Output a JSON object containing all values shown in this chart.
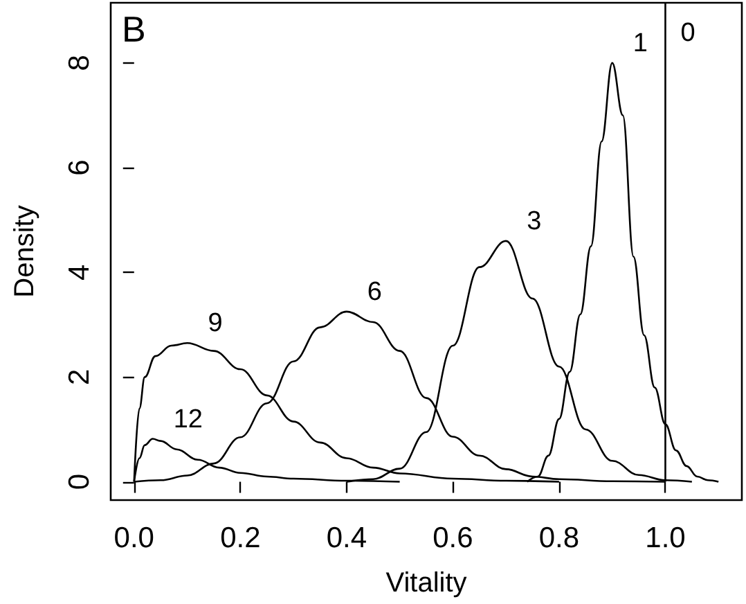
{
  "chart_data": {
    "type": "line",
    "xlabel": "Vitality",
    "ylabel": "Density",
    "annotations": [
      "B"
    ],
    "xlim": [
      -0.044,
      1.144
    ],
    "ylim": [
      -0.35,
      9.15
    ],
    "xticks": [
      {
        "value": 0,
        "label": "0.0"
      },
      0.2,
      0.4,
      0.6,
      0.8,
      {
        "value": 1,
        "label": "1.0"
      }
    ],
    "yticks": [
      0,
      2,
      4,
      6,
      8
    ],
    "grid": false,
    "legend": false,
    "marker": "none",
    "line_style": "solid",
    "series": [
      {
        "name": "0",
        "color": "#000000",
        "x": [
          1.0,
          1.0
        ],
        "values": [
          0,
          9.15
        ]
      },
      {
        "name": "1",
        "color": "#000000",
        "x": [
          0.74,
          0.76,
          0.78,
          0.8,
          0.82,
          0.84,
          0.86,
          0.88,
          0.9,
          0.92,
          0.94,
          0.96,
          0.98,
          1.0,
          1.02,
          1.04,
          1.06,
          1.08,
          1.1
        ],
        "values": [
          0,
          0.1,
          0.5,
          1.2,
          2.1,
          3.2,
          4.5,
          6.5,
          8.0,
          7.0,
          4.3,
          2.8,
          1.8,
          1.1,
          0.6,
          0.3,
          0.1,
          0.03,
          0
        ]
      },
      {
        "name": "3",
        "color": "#000000",
        "x": [
          0.4,
          0.45,
          0.5,
          0.55,
          0.6,
          0.65,
          0.7,
          0.75,
          0.8,
          0.85,
          0.9,
          0.95,
          1.0,
          1.05
        ],
        "values": [
          0,
          0.05,
          0.25,
          0.95,
          2.6,
          4.1,
          4.6,
          3.5,
          2.2,
          1.0,
          0.4,
          0.13,
          0.03,
          0
        ]
      },
      {
        "name": "6",
        "color": "#000000",
        "x": [
          0.0,
          0.05,
          0.1,
          0.15,
          0.2,
          0.25,
          0.3,
          0.35,
          0.4,
          0.45,
          0.5,
          0.55,
          0.6,
          0.65,
          0.7,
          0.75,
          0.8,
          0.9,
          1.0
        ],
        "values": [
          0,
          0.03,
          0.12,
          0.35,
          0.85,
          1.5,
          2.3,
          2.95,
          3.25,
          3.05,
          2.5,
          1.6,
          0.86,
          0.5,
          0.24,
          0.1,
          0.05,
          0.01,
          0
        ]
      },
      {
        "name": "9",
        "color": "#000000",
        "x": [
          0.0,
          0.01,
          0.02,
          0.04,
          0.07,
          0.1,
          0.15,
          0.2,
          0.25,
          0.3,
          0.35,
          0.4,
          0.45,
          0.5,
          0.6,
          0.7,
          0.8
        ],
        "values": [
          0,
          1.4,
          2.0,
          2.4,
          2.6,
          2.65,
          2.5,
          2.15,
          1.65,
          1.15,
          0.75,
          0.45,
          0.27,
          0.16,
          0.06,
          0.02,
          0
        ]
      },
      {
        "name": "12",
        "color": "#000000",
        "x": [
          0.0,
          0.01,
          0.02,
          0.035,
          0.05,
          0.08,
          0.12,
          0.16,
          0.2,
          0.25,
          0.3,
          0.4,
          0.5
        ],
        "values": [
          0,
          0.45,
          0.7,
          0.82,
          0.78,
          0.62,
          0.42,
          0.27,
          0.17,
          0.1,
          0.06,
          0.02,
          0
        ]
      }
    ]
  }
}
